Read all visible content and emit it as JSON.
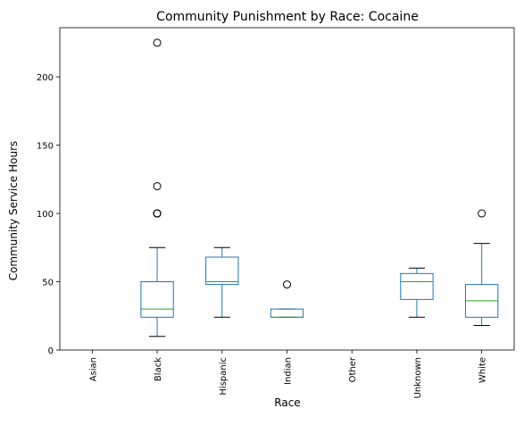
{
  "chart_data": {
    "type": "box",
    "title": "Community Punishment by Race: Cocaine",
    "xlabel": "Race",
    "ylabel": "Community Service Hours",
    "ylim": [
      0,
      236
    ],
    "yticks": [
      0,
      50,
      100,
      150,
      200
    ],
    "categories": [
      "Asian",
      "Black",
      "Hispanic",
      "Indian",
      "Other",
      "Unknown",
      "White"
    ],
    "boxes": [
      null,
      {
        "whisker_low": 10,
        "q1": 24,
        "median": 30,
        "q3": 50,
        "whisker_high": 75,
        "outliers": [
          100,
          100,
          100,
          100,
          120,
          225
        ]
      },
      {
        "whisker_low": 24,
        "q1": 48,
        "median": 50,
        "q3": 68,
        "whisker_high": 75,
        "outliers": []
      },
      {
        "whisker_low": 24,
        "q1": 24,
        "median": 24,
        "q3": 30,
        "whisker_high": 30,
        "outliers": [
          48
        ]
      },
      null,
      {
        "whisker_low": 24,
        "q1": 37,
        "median": 50,
        "q3": 56,
        "whisker_high": 60,
        "outliers": []
      },
      {
        "whisker_low": 18,
        "q1": 24,
        "median": 36,
        "q3": 48,
        "whisker_high": 78,
        "outliers": [
          100
        ]
      }
    ],
    "box_color": "#1f77b4",
    "median_color": "#2ca02c",
    "grid": false
  }
}
